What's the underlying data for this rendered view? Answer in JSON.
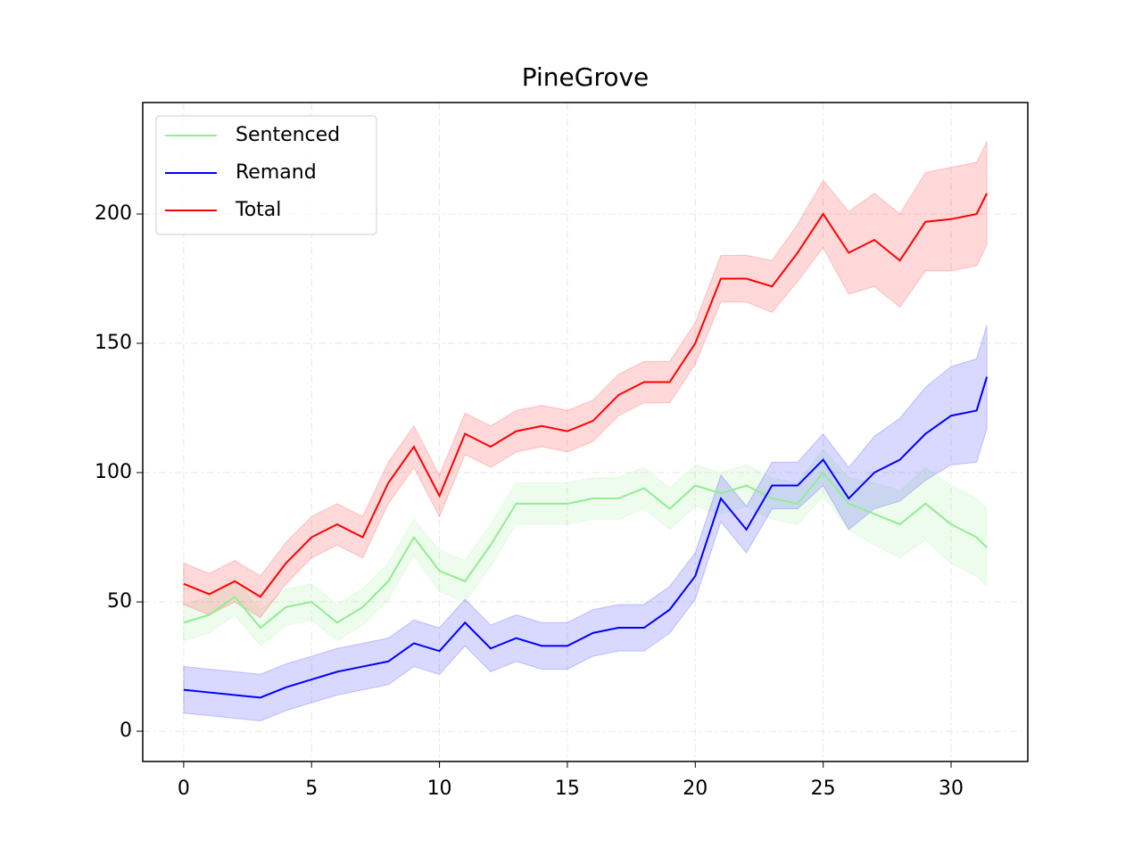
{
  "chart_data": {
    "type": "line",
    "title": "PineGrove",
    "x": [
      0,
      1,
      2,
      3,
      4,
      5,
      6,
      7,
      8,
      9,
      10,
      11,
      12,
      13,
      14,
      15,
      16,
      17,
      18,
      19,
      20,
      21,
      22,
      23,
      24,
      25,
      26,
      27,
      28,
      29,
      30,
      31,
      31.4
    ],
    "series": [
      {
        "name": "Sentenced",
        "color": "#90ee90",
        "values": [
          42,
          45,
          52,
          40,
          48,
          50,
          42,
          48,
          58,
          75,
          62,
          58,
          72,
          88,
          88,
          88,
          90,
          90,
          94,
          86,
          95,
          92,
          95,
          90,
          88,
          100,
          88,
          84,
          80,
          88,
          80,
          75,
          71
        ],
        "band": [
          7,
          7,
          7,
          7,
          7,
          7,
          7,
          7,
          7,
          7,
          8,
          8,
          8,
          8,
          8,
          8,
          8,
          8,
          8,
          8,
          8,
          8,
          8,
          8,
          8,
          9,
          10,
          12,
          13,
          14,
          15,
          15,
          15
        ]
      },
      {
        "name": "Remand",
        "color": "#0000ff",
        "values": [
          16,
          15,
          14,
          13,
          17,
          20,
          23,
          25,
          27,
          34,
          31,
          42,
          32,
          36,
          33,
          33,
          38,
          40,
          40,
          47,
          60,
          90,
          78,
          95,
          95,
          105,
          90,
          100,
          105,
          115,
          122,
          124,
          137
        ],
        "band": [
          9,
          9,
          9,
          9,
          9,
          9,
          9,
          9,
          9,
          9,
          9,
          9,
          9,
          9,
          9,
          9,
          9,
          9,
          9,
          9,
          9,
          9,
          9,
          9,
          9,
          10,
          12,
          14,
          16,
          18,
          19,
          20,
          20
        ]
      },
      {
        "name": "Total",
        "color": "#ff0000",
        "values": [
          57,
          53,
          58,
          52,
          65,
          75,
          80,
          75,
          96,
          110,
          91,
          115,
          110,
          116,
          118,
          116,
          120,
          130,
          135,
          135,
          150,
          175,
          175,
          172,
          185,
          200,
          185,
          190,
          182,
          197,
          198,
          200,
          208
        ],
        "band": [
          8,
          8,
          8,
          8,
          8,
          8,
          8,
          8,
          8,
          8,
          8,
          8,
          8,
          8,
          8,
          8,
          8,
          8,
          8,
          8,
          8,
          9,
          9,
          10,
          11,
          13,
          16,
          18,
          18,
          19,
          20,
          20,
          20
        ]
      }
    ],
    "xlim": [
      -1.6,
      33.0
    ],
    "ylim": [
      -11.7,
      243.1
    ],
    "xticks": [
      0,
      5,
      10,
      15,
      20,
      25,
      30
    ],
    "yticks": [
      0,
      50,
      100,
      150,
      200
    ],
    "grid": true,
    "legend": "upper left"
  }
}
